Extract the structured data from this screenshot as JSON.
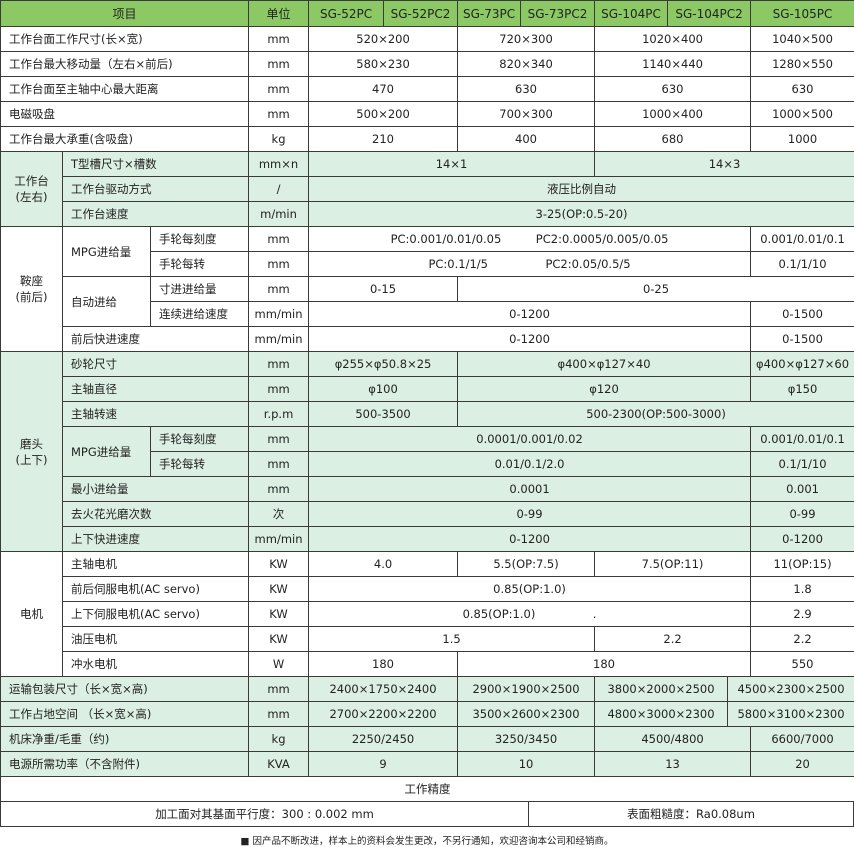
{
  "header": {
    "item": "项目",
    "unit": "单位",
    "models": [
      "SG-52PC",
      "SG-52PC2",
      "SG-73PC",
      "SG-73PC2",
      "SG-104PC",
      "SG-104PC2",
      "SG-105PC"
    ]
  },
  "general": [
    {
      "label": "工作台面工作尺寸(长×宽)",
      "unit": "mm",
      "values": [
        "520×200",
        "720×300",
        "1020×400",
        "1040×500"
      ]
    },
    {
      "label": "工作台最大移动量（左右×前后)",
      "unit": "mm",
      "values": [
        "580×230",
        "820×340",
        "1140×440",
        "1280×550"
      ]
    },
    {
      "label": "工作台面至主轴中心最大距离",
      "unit": "mm",
      "values": [
        "470",
        "630",
        "630",
        "630"
      ]
    },
    {
      "label": "电磁吸盘",
      "unit": "mm",
      "values": [
        "500×200",
        "700×300",
        "1000×400",
        "1000×500"
      ]
    },
    {
      "label": "工作台最大承重(含吸盘)",
      "unit": "kg",
      "values": [
        "210",
        "400",
        "680",
        "1000"
      ]
    }
  ],
  "table_group": {
    "name1": "工作台",
    "name2": "(左右)",
    "rows": [
      {
        "label": "T型槽尺寸×槽数",
        "unit": "mm×n",
        "values": [
          "14×1",
          "14×3"
        ]
      },
      {
        "label": "工作台驱动方式",
        "unit": "/",
        "values": [
          "液压比例自动"
        ]
      },
      {
        "label": "工作台速度",
        "unit": "m/min",
        "values": [
          "3-25(OP:0.5-20)"
        ]
      }
    ]
  },
  "saddle": {
    "name1": "鞍座",
    "name2": "(前后)",
    "mpg": "MPG进给量",
    "auto": "自动进给",
    "rows": [
      {
        "label": "手轮每刻度",
        "unit": "mm",
        "values": [
          "PC:0.001/0.01/0.05　　　PC2:0.0005/0.005/0.05",
          "0.001/0.01/0.1"
        ]
      },
      {
        "label": "手轮每转",
        "unit": "mm",
        "values": [
          "PC:0.1/1/5　　　　　PC2:0.05/0.5/5",
          "0.1/1/10"
        ]
      },
      {
        "label": "寸进进给量",
        "unit": "mm",
        "values": [
          "0-15",
          "0-25"
        ]
      },
      {
        "label": "连续进给速度",
        "unit": "mm/min",
        "values": [
          "0-1200",
          "0-1500"
        ]
      },
      {
        "label": "前后快进速度",
        "unit": "mm/min",
        "values": [
          "0-1200",
          "0-1500"
        ]
      }
    ]
  },
  "head": {
    "name1": "磨头",
    "name2": "(上下)",
    "mpg": "MPG进给量",
    "rows": [
      {
        "label": "砂轮尺寸",
        "unit": "mm",
        "values": [
          "φ255×φ50.8×25",
          "φ400×φ127×40",
          "φ400×φ127×60"
        ]
      },
      {
        "label": "主轴直径",
        "unit": "mm",
        "values": [
          "φ100",
          "φ120",
          "φ150"
        ]
      },
      {
        "label": "主轴转速",
        "unit": "r.p.m",
        "values": [
          "500-3500",
          "500-2300(OP:500-3000)"
        ]
      },
      {
        "label": "手轮每刻度",
        "unit": "mm",
        "values": [
          "0.0001/0.001/0.02",
          "0.001/0.01/0.1"
        ]
      },
      {
        "label": "手轮每转",
        "unit": "mm",
        "values": [
          "0.01/0.1/2.0",
          "0.1/1/10"
        ]
      },
      {
        "label": "最小进给量",
        "unit": "mm",
        "values": [
          "0.0001",
          "0.001"
        ]
      },
      {
        "label": "去火花光磨次数",
        "unit": "次",
        "values": [
          "0-99",
          "0-99"
        ]
      },
      {
        "label": "上下快进速度",
        "unit": "mm/min",
        "values": [
          "0-1200",
          "0-1200"
        ]
      }
    ]
  },
  "motor": {
    "name": "电机",
    "rows": [
      {
        "label": "主轴电机",
        "unit": "KW",
        "values": [
          "4.0",
          "5.5(OP:7.5)",
          "7.5(OP:11)",
          "11(OP:15)"
        ]
      },
      {
        "label": "前后伺服电机(AC servo)",
        "unit": "KW",
        "values": [
          "0.85(OP:1.0)",
          "1.8"
        ]
      },
      {
        "label": "上下伺服电机(AC servo)",
        "unit": "KW",
        "values": [
          "0.85(OP:1.0)　　　　　.",
          "2.9"
        ]
      },
      {
        "label": "油压电机",
        "unit": "KW",
        "values": [
          "1.5",
          "2.2",
          "2.2"
        ]
      },
      {
        "label": "冲水电机",
        "unit": "W",
        "values": [
          "180",
          "180",
          "550"
        ]
      }
    ]
  },
  "misc": [
    {
      "label": "运输包装尺寸（长×宽×高)",
      "unit": "mm",
      "values": [
        "2400×1750×2400",
        "2900×1900×2500",
        "3800×2000×2500",
        "4500×2300×2500"
      ]
    },
    {
      "label": "工作占地空间 （长×宽×高)",
      "unit": "mm",
      "values": [
        "2700×2200×2200",
        "3500×2600×2300",
        "4800×3000×2300",
        "5800×3100×2300"
      ]
    },
    {
      "label": "机床净重/毛重（约)",
      "unit": "kg",
      "values": [
        "2250/2450",
        "3250/3450",
        "4500/4800",
        "6600/7000"
      ]
    },
    {
      "label": "电源所需功率（不含附件)",
      "unit": "KVA",
      "values": [
        "9",
        "10",
        "13",
        "20"
      ]
    }
  ],
  "precision": {
    "title": "工作精度",
    "parallelism": "加工面对其基面平行度：300 : 0.002 mm",
    "roughness": "表面粗糙度：Ra0.08um"
  },
  "footnote": "■ 因产品不断改进，样本上的资料会发生更改，不另行通知，欢迎咨询本公司和经销商。"
}
